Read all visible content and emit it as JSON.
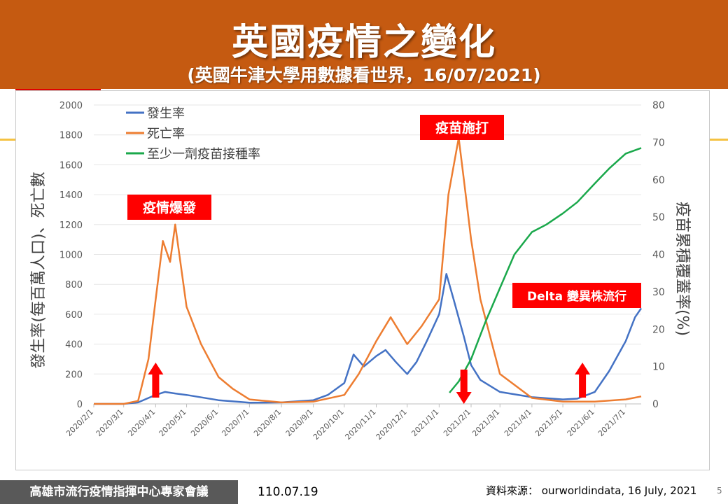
{
  "slide": {
    "title": "英國疫情之變化",
    "subtitle": "(英國牛津大學用數據看世界，16/07/2021)",
    "footer_org": "高雄市流行疫情指揮中心專家會議",
    "footer_date": "110.07.19",
    "source": "資料來源： ourworldindata, 16 July, 2021",
    "page_number": "5"
  },
  "colors": {
    "header_bg": "#c55a11",
    "incidence": "#4472c4",
    "deaths": "#ed7d31",
    "vaccination": "#1aa84b",
    "callout_bg": "#ff0000",
    "arrow": "#ff0000"
  },
  "chart_data": {
    "type": "line",
    "title": "",
    "ylabel_left": "發生率(每百萬人口)、死亡數",
    "ylabel_right": "疫苗累積覆蓋率(%)",
    "ylim_left": [
      0,
      2000
    ],
    "ylim_right": [
      0,
      80
    ],
    "yticks_left": [
      "0",
      "200",
      "400",
      "600",
      "800",
      "1000",
      "1200",
      "1400",
      "1600",
      "1800",
      "2000"
    ],
    "yticks_right": [
      "0",
      "10",
      "20",
      "30",
      "40",
      "50",
      "60",
      "70",
      "80"
    ],
    "xlim": [
      "2020/2/1",
      "2021/7/16"
    ],
    "xticks": [
      "2020/2/1",
      "2020/3/1",
      "2020/4/1",
      "2020/5/1",
      "2020/6/1",
      "2020/7/1",
      "2020/8/1",
      "2020/9/1",
      "2020/10/1",
      "2020/11/1",
      "2020/12/1",
      "2021/1/1",
      "2021/2/1",
      "2021/3/1",
      "2021/4/1",
      "2021/5/1",
      "2021/6/1",
      "2021/7/1"
    ],
    "grid": "horizontal",
    "legend_position": "top-left",
    "series": [
      {
        "name": "發生率",
        "axis": "left",
        "color": "#4472c4",
        "points": [
          [
            "2020/2/1",
            0
          ],
          [
            "2020/3/1",
            0
          ],
          [
            "2020/3/15",
            10
          ],
          [
            "2020/3/25",
            40
          ],
          [
            "2020/4/1",
            60
          ],
          [
            "2020/4/10",
            80
          ],
          [
            "2020/4/20",
            70
          ],
          [
            "2020/5/1",
            60
          ],
          [
            "2020/6/1",
            25
          ],
          [
            "2020/7/1",
            8
          ],
          [
            "2020/8/1",
            10
          ],
          [
            "2020/9/1",
            25
          ],
          [
            "2020/9/15",
            60
          ],
          [
            "2020/10/1",
            140
          ],
          [
            "2020/10/10",
            330
          ],
          [
            "2020/10/20",
            250
          ],
          [
            "2020/11/1",
            320
          ],
          [
            "2020/11/10",
            360
          ],
          [
            "2020/11/20",
            280
          ],
          [
            "2020/12/1",
            200
          ],
          [
            "2020/12/10",
            280
          ],
          [
            "2020/12/20",
            420
          ],
          [
            "2021/1/1",
            600
          ],
          [
            "2021/1/8",
            870
          ],
          [
            "2021/1/15",
            700
          ],
          [
            "2021/1/25",
            450
          ],
          [
            "2021/2/1",
            260
          ],
          [
            "2021/2/10",
            160
          ],
          [
            "2021/3/1",
            80
          ],
          [
            "2021/4/1",
            45
          ],
          [
            "2021/5/1",
            30
          ],
          [
            "2021/5/15",
            35
          ],
          [
            "2021/6/1",
            80
          ],
          [
            "2021/6/15",
            220
          ],
          [
            "2021/7/1",
            420
          ],
          [
            "2021/7/10",
            580
          ],
          [
            "2021/7/16",
            640
          ]
        ]
      },
      {
        "name": "死亡率",
        "axis": "left",
        "color": "#ed7d31",
        "points": [
          [
            "2020/2/1",
            0
          ],
          [
            "2020/3/1",
            0
          ],
          [
            "2020/3/15",
            20
          ],
          [
            "2020/3/25",
            300
          ],
          [
            "2020/4/1",
            700
          ],
          [
            "2020/4/8",
            1090
          ],
          [
            "2020/4/15",
            950
          ],
          [
            "2020/4/20",
            1200
          ],
          [
            "2020/5/1",
            650
          ],
          [
            "2020/5/15",
            400
          ],
          [
            "2020/6/1",
            180
          ],
          [
            "2020/6/15",
            100
          ],
          [
            "2020/7/1",
            30
          ],
          [
            "2020/8/1",
            10
          ],
          [
            "2020/9/1",
            15
          ],
          [
            "2020/10/1",
            60
          ],
          [
            "2020/10/15",
            200
          ],
          [
            "2020/11/1",
            420
          ],
          [
            "2020/11/15",
            580
          ],
          [
            "2020/12/1",
            400
          ],
          [
            "2020/12/15",
            520
          ],
          [
            "2021/1/1",
            700
          ],
          [
            "2021/1/10",
            1400
          ],
          [
            "2021/1/20",
            1780
          ],
          [
            "2021/1/25",
            1500
          ],
          [
            "2021/2/1",
            1100
          ],
          [
            "2021/2/10",
            700
          ],
          [
            "2021/3/1",
            200
          ],
          [
            "2021/4/1",
            40
          ],
          [
            "2021/5/1",
            15
          ],
          [
            "2021/6/1",
            15
          ],
          [
            "2021/7/1",
            30
          ],
          [
            "2021/7/16",
            50
          ]
        ]
      },
      {
        "name": "至少一劑疫苗接種率",
        "axis": "right",
        "color": "#1aa84b",
        "points": [
          [
            "2021/1/11",
            3
          ],
          [
            "2021/1/20",
            6
          ],
          [
            "2021/2/1",
            12
          ],
          [
            "2021/2/15",
            22
          ],
          [
            "2021/3/1",
            31
          ],
          [
            "2021/3/15",
            40
          ],
          [
            "2021/4/1",
            46
          ],
          [
            "2021/4/15",
            48
          ],
          [
            "2021/5/1",
            51
          ],
          [
            "2021/5/15",
            54
          ],
          [
            "2021/6/1",
            59
          ],
          [
            "2021/6/15",
            63
          ],
          [
            "2021/7/1",
            67
          ],
          [
            "2021/7/16",
            68.5
          ]
        ]
      }
    ],
    "annotations": [
      {
        "text": "疫情爆發",
        "type": "callout"
      },
      {
        "text": "疫苗施打",
        "type": "callout"
      },
      {
        "text": "Delta 變異株流行",
        "type": "callout"
      }
    ],
    "arrows": [
      {
        "date": "2020/4/1",
        "direction": "up"
      },
      {
        "date": "2021/1/25",
        "direction": "down"
      },
      {
        "date": "2021/5/20",
        "direction": "up"
      }
    ]
  }
}
